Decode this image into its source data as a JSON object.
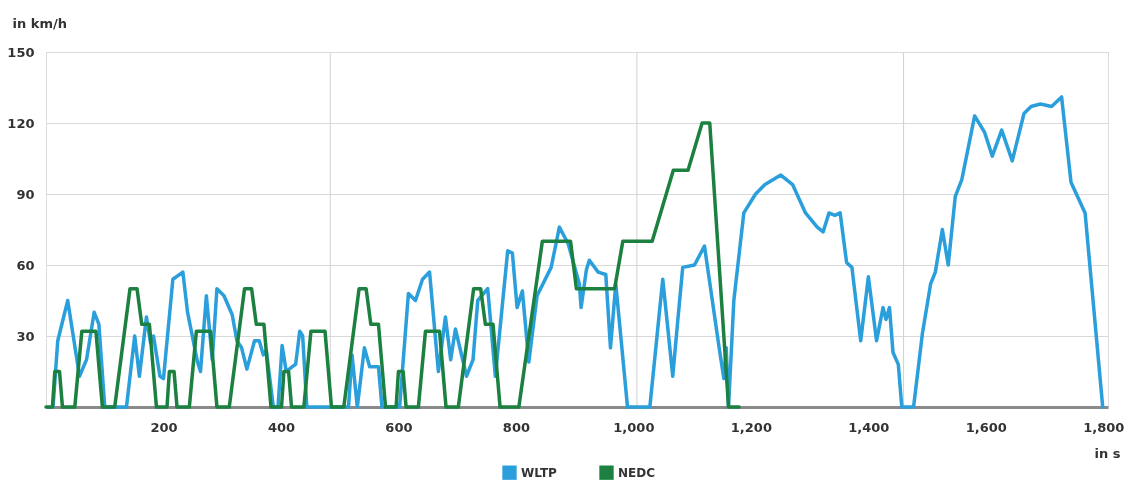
{
  "chart_data": {
    "type": "line",
    "ylabel": "in km/h",
    "xlabel": "in s",
    "xlim": [
      0,
      1808
    ],
    "ylim": [
      0,
      150
    ],
    "xticks": [
      200,
      400,
      600,
      800,
      {
        "value": 1000,
        "label": "1,000"
      },
      {
        "value": 1200,
        "label": "1,200"
      },
      {
        "value": 1400,
        "label": "1,400"
      },
      {
        "value": 1600,
        "label": "1,600"
      },
      {
        "value": 1800,
        "label": "1,800"
      }
    ],
    "yticks": [
      30,
      60,
      90,
      120,
      150
    ],
    "grid": "y",
    "legend": "bottom",
    "marker": "none",
    "line_style": "solid",
    "ref_lines": [
      {
        "axis": "x",
        "value": 484,
        "color": "#d0d0d0"
      },
      {
        "axis": "x",
        "value": 1006,
        "color": "#d0d0d0"
      },
      {
        "axis": "x",
        "value": 1460,
        "color": "#d0d0d0"
      }
    ],
    "series": [
      {
        "name": "WLTP",
        "color": "#2a9fdb",
        "x": [
          12,
          20,
          37,
          57,
          69,
          82,
          90,
          100,
          137,
          151,
          159,
          171,
          178,
          183,
          194,
          200,
          216,
          233,
          241,
          258,
          263,
          273,
          283,
          291,
          303,
          317,
          325,
          333,
          342,
          355,
          363,
          370,
          375,
          387,
          395,
          402,
          409,
          419,
          425,
          432,
          437,
          444,
          515,
          521,
          530,
          542,
          551,
          566,
          572,
          602,
          617,
          629,
          641,
          653,
          668,
          680,
          689,
          697,
          716,
          727,
          735,
          752,
          765,
          786,
          794,
          802,
          811,
          822,
          836,
          860,
          874,
          889,
          908,
          911,
          920,
          925,
          940,
          953,
          961,
          970,
          990,
          1028,
          1050,
          1067,
          1075,
          1084,
          1104,
          1121,
          1146,
          1154,
          1158,
          1162,
          1171,
          1188,
          1208,
          1224,
          1251,
          1271,
          1293,
          1313,
          1323,
          1333,
          1343,
          1352,
          1363,
          1372,
          1387,
          1400,
          1414,
          1425,
          1430,
          1436,
          1442,
          1451,
          1457,
          1477,
          1492,
          1506,
          1514,
          1526,
          1536,
          1548,
          1559,
          1581,
          1598,
          1611,
          1627,
          1645,
          1665,
          1677,
          1693,
          1712,
          1729,
          1745,
          1769,
          1799
        ],
        "values": [
          0,
          28,
          45,
          13,
          20,
          40,
          35,
          0,
          0,
          30,
          13,
          38,
          27,
          30,
          13,
          12,
          54,
          57,
          40,
          19,
          15,
          47,
          20,
          50,
          47,
          39,
          28,
          25,
          16,
          28,
          28,
          22,
          24,
          0,
          0,
          26,
          15,
          17,
          18,
          32,
          30,
          0,
          0,
          22,
          0,
          25,
          17,
          17,
          0,
          0,
          48,
          45,
          54,
          57,
          15,
          38,
          20,
          33,
          13,
          20,
          45,
          50,
          13,
          66,
          65,
          42,
          49,
          19,
          47,
          59,
          76,
          69,
          52,
          42,
          58,
          62,
          57,
          56,
          25,
          52,
          0,
          0,
          54,
          13,
          35,
          59,
          60,
          68,
          25,
          12,
          25,
          0,
          45,
          82,
          90,
          94,
          98,
          94,
          82,
          76,
          74,
          82,
          81,
          82,
          61,
          59,
          28,
          55,
          28,
          42,
          37,
          42,
          23,
          18,
          0,
          0,
          31,
          52,
          57,
          75,
          60,
          89,
          96,
          123,
          116,
          106,
          117,
          104,
          124,
          127,
          128,
          127,
          131,
          95,
          82,
          0
        ]
      },
      {
        "name": "NEDC",
        "color": "#1b8040",
        "x": [
          0,
          11,
          15,
          23,
          28,
          49,
          61,
          85,
          96,
          117,
          143,
          155,
          163,
          176,
          188,
          206,
          210,
          218,
          223,
          244,
          256,
          280,
          291,
          312,
          338,
          350,
          358,
          371,
          383,
          401,
          405,
          413,
          418,
          439,
          451,
          475,
          486,
          507,
          533,
          545,
          553,
          566,
          578,
          596,
          600,
          608,
          613,
          634,
          646,
          670,
          681,
          702,
          728,
          740,
          748,
          761,
          773,
          805,
          845,
          893,
          903,
          968,
          982,
          1032,
          1068,
          1093,
          1117,
          1130,
          1162,
          1180
        ],
        "values": [
          0,
          0,
          15,
          15,
          0,
          0,
          32,
          32,
          0,
          0,
          50,
          50,
          35,
          35,
          0,
          0,
          15,
          15,
          0,
          0,
          32,
          32,
          0,
          0,
          50,
          50,
          35,
          35,
          0,
          0,
          15,
          15,
          0,
          0,
          32,
          32,
          0,
          0,
          50,
          50,
          35,
          35,
          0,
          0,
          15,
          15,
          0,
          0,
          32,
          32,
          0,
          0,
          50,
          50,
          35,
          35,
          0,
          0,
          70,
          70,
          50,
          50,
          70,
          70,
          100,
          100,
          120,
          120,
          0,
          0
        ]
      }
    ]
  }
}
